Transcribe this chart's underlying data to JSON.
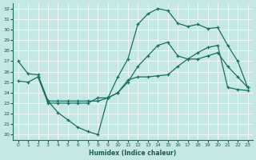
{
  "xlabel": "Humidex (Indice chaleur)",
  "bg_color": "#c5e8e4",
  "line_color": "#1a6e64",
  "grid_color": "#ffffff",
  "xlim": [
    -0.5,
    23.5
  ],
  "ylim": [
    19.5,
    32.5
  ],
  "xticks": [
    0,
    1,
    2,
    3,
    4,
    5,
    6,
    7,
    8,
    9,
    10,
    11,
    12,
    13,
    14,
    15,
    16,
    17,
    18,
    19,
    20,
    21,
    22,
    23
  ],
  "yticks": [
    20,
    21,
    22,
    23,
    24,
    25,
    26,
    27,
    28,
    29,
    30,
    31,
    32
  ],
  "curve1_x": [
    0,
    1,
    2,
    3,
    4,
    5,
    6,
    7,
    8,
    9,
    10,
    11,
    12,
    13,
    14,
    15,
    16,
    17,
    18,
    19,
    20,
    21,
    22,
    23
  ],
  "curve1_y": [
    27.0,
    25.8,
    25.7,
    23.2,
    22.1,
    21.4,
    20.7,
    20.3,
    20.0,
    23.5,
    25.5,
    27.2,
    30.5,
    31.5,
    32.0,
    31.8,
    30.6,
    30.3,
    30.5,
    30.1,
    30.2,
    28.5,
    27.0,
    24.5
  ],
  "curve2_x": [
    0,
    1,
    2,
    3,
    4,
    5,
    6,
    7,
    8,
    9,
    10,
    11,
    12,
    13,
    14,
    15,
    16,
    17,
    18,
    19,
    20,
    21,
    22,
    23
  ],
  "curve2_y": [
    25.1,
    25.0,
    25.5,
    23.2,
    23.2,
    23.2,
    23.2,
    23.2,
    23.2,
    23.5,
    24.0,
    25.2,
    25.5,
    25.5,
    25.6,
    25.7,
    26.5,
    27.2,
    27.8,
    28.3,
    28.5,
    24.5,
    24.3,
    24.2
  ],
  "curve3_x": [
    2,
    3,
    4,
    5,
    6,
    7,
    8,
    9,
    10,
    11,
    12,
    13,
    14,
    15,
    16,
    17,
    18,
    19,
    20,
    21,
    22,
    23
  ],
  "curve3_y": [
    25.5,
    23.0,
    23.0,
    23.0,
    23.0,
    23.0,
    23.5,
    23.5,
    24.0,
    25.0,
    26.5,
    27.5,
    28.5,
    28.8,
    27.5,
    27.2,
    27.2,
    27.5,
    27.8,
    26.5,
    25.5,
    24.5
  ]
}
